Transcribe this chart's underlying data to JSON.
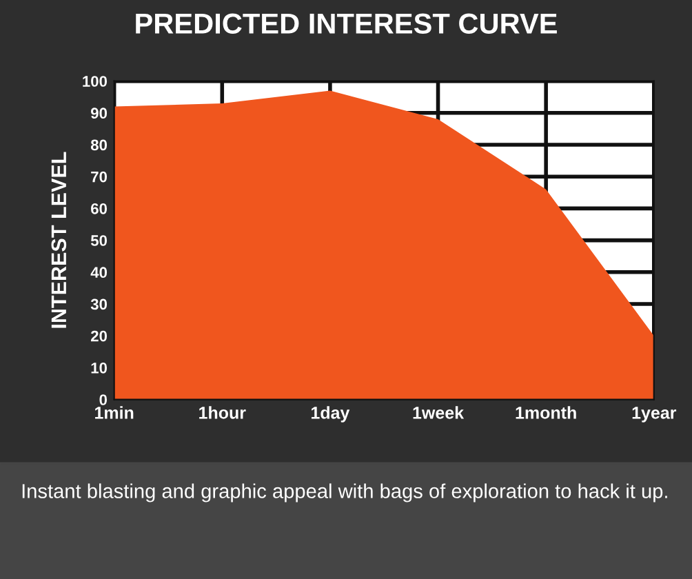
{
  "chart_data": {
    "type": "area",
    "title": "PREDICTED INTEREST CURVE",
    "ylabel": "INTEREST LEVEL",
    "categories": [
      "1min",
      "1hour",
      "1day",
      "1week",
      "1month",
      "1year"
    ],
    "series": [
      {
        "color": "#f0561e",
        "values": [
          92,
          93,
          97,
          88,
          66,
          20
        ]
      }
    ],
    "ylim": [
      0,
      100
    ],
    "yticks": [
      0,
      10,
      20,
      30,
      40,
      50,
      60,
      70,
      80,
      90,
      100
    ],
    "grid": true,
    "legend": false,
    "annotations": [
      "Instant blasting and graphic appeal with bags of exploration to hack it up."
    ]
  }
}
